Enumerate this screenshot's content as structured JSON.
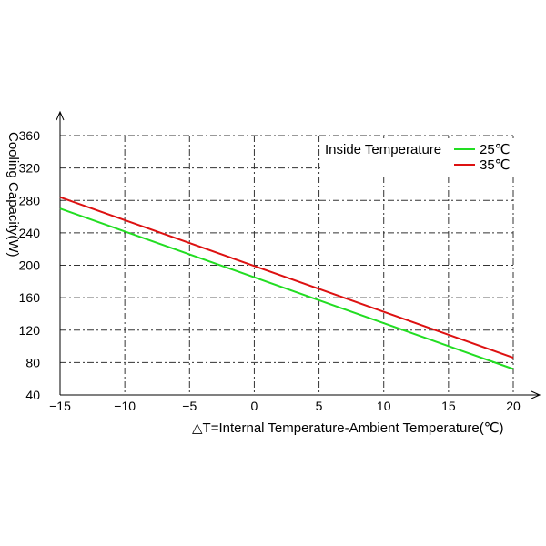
{
  "chart_data": {
    "type": "line",
    "title": "",
    "xlabel": "△T=Internal Temperature-Ambient Temperature(℃)",
    "ylabel": "Cooling Capacity(W)",
    "xlim": [
      -15,
      20
    ],
    "ylim": [
      40,
      360
    ],
    "xticks": [
      -15,
      -10,
      -5,
      0,
      5,
      10,
      15,
      20
    ],
    "yticks": [
      40,
      80,
      120,
      160,
      200,
      240,
      280,
      320,
      360
    ],
    "grid": true,
    "grid_style": "dash-dot",
    "legend_title": "Inside Temperature",
    "legend_position": "top-right",
    "series": [
      {
        "name": "25℃",
        "color": "#22dd22",
        "x": [
          -15,
          20
        ],
        "y": [
          270,
          72
        ]
      },
      {
        "name": "35℃",
        "color": "#dd1111",
        "x": [
          -15,
          20
        ],
        "y": [
          284,
          86
        ]
      }
    ]
  }
}
